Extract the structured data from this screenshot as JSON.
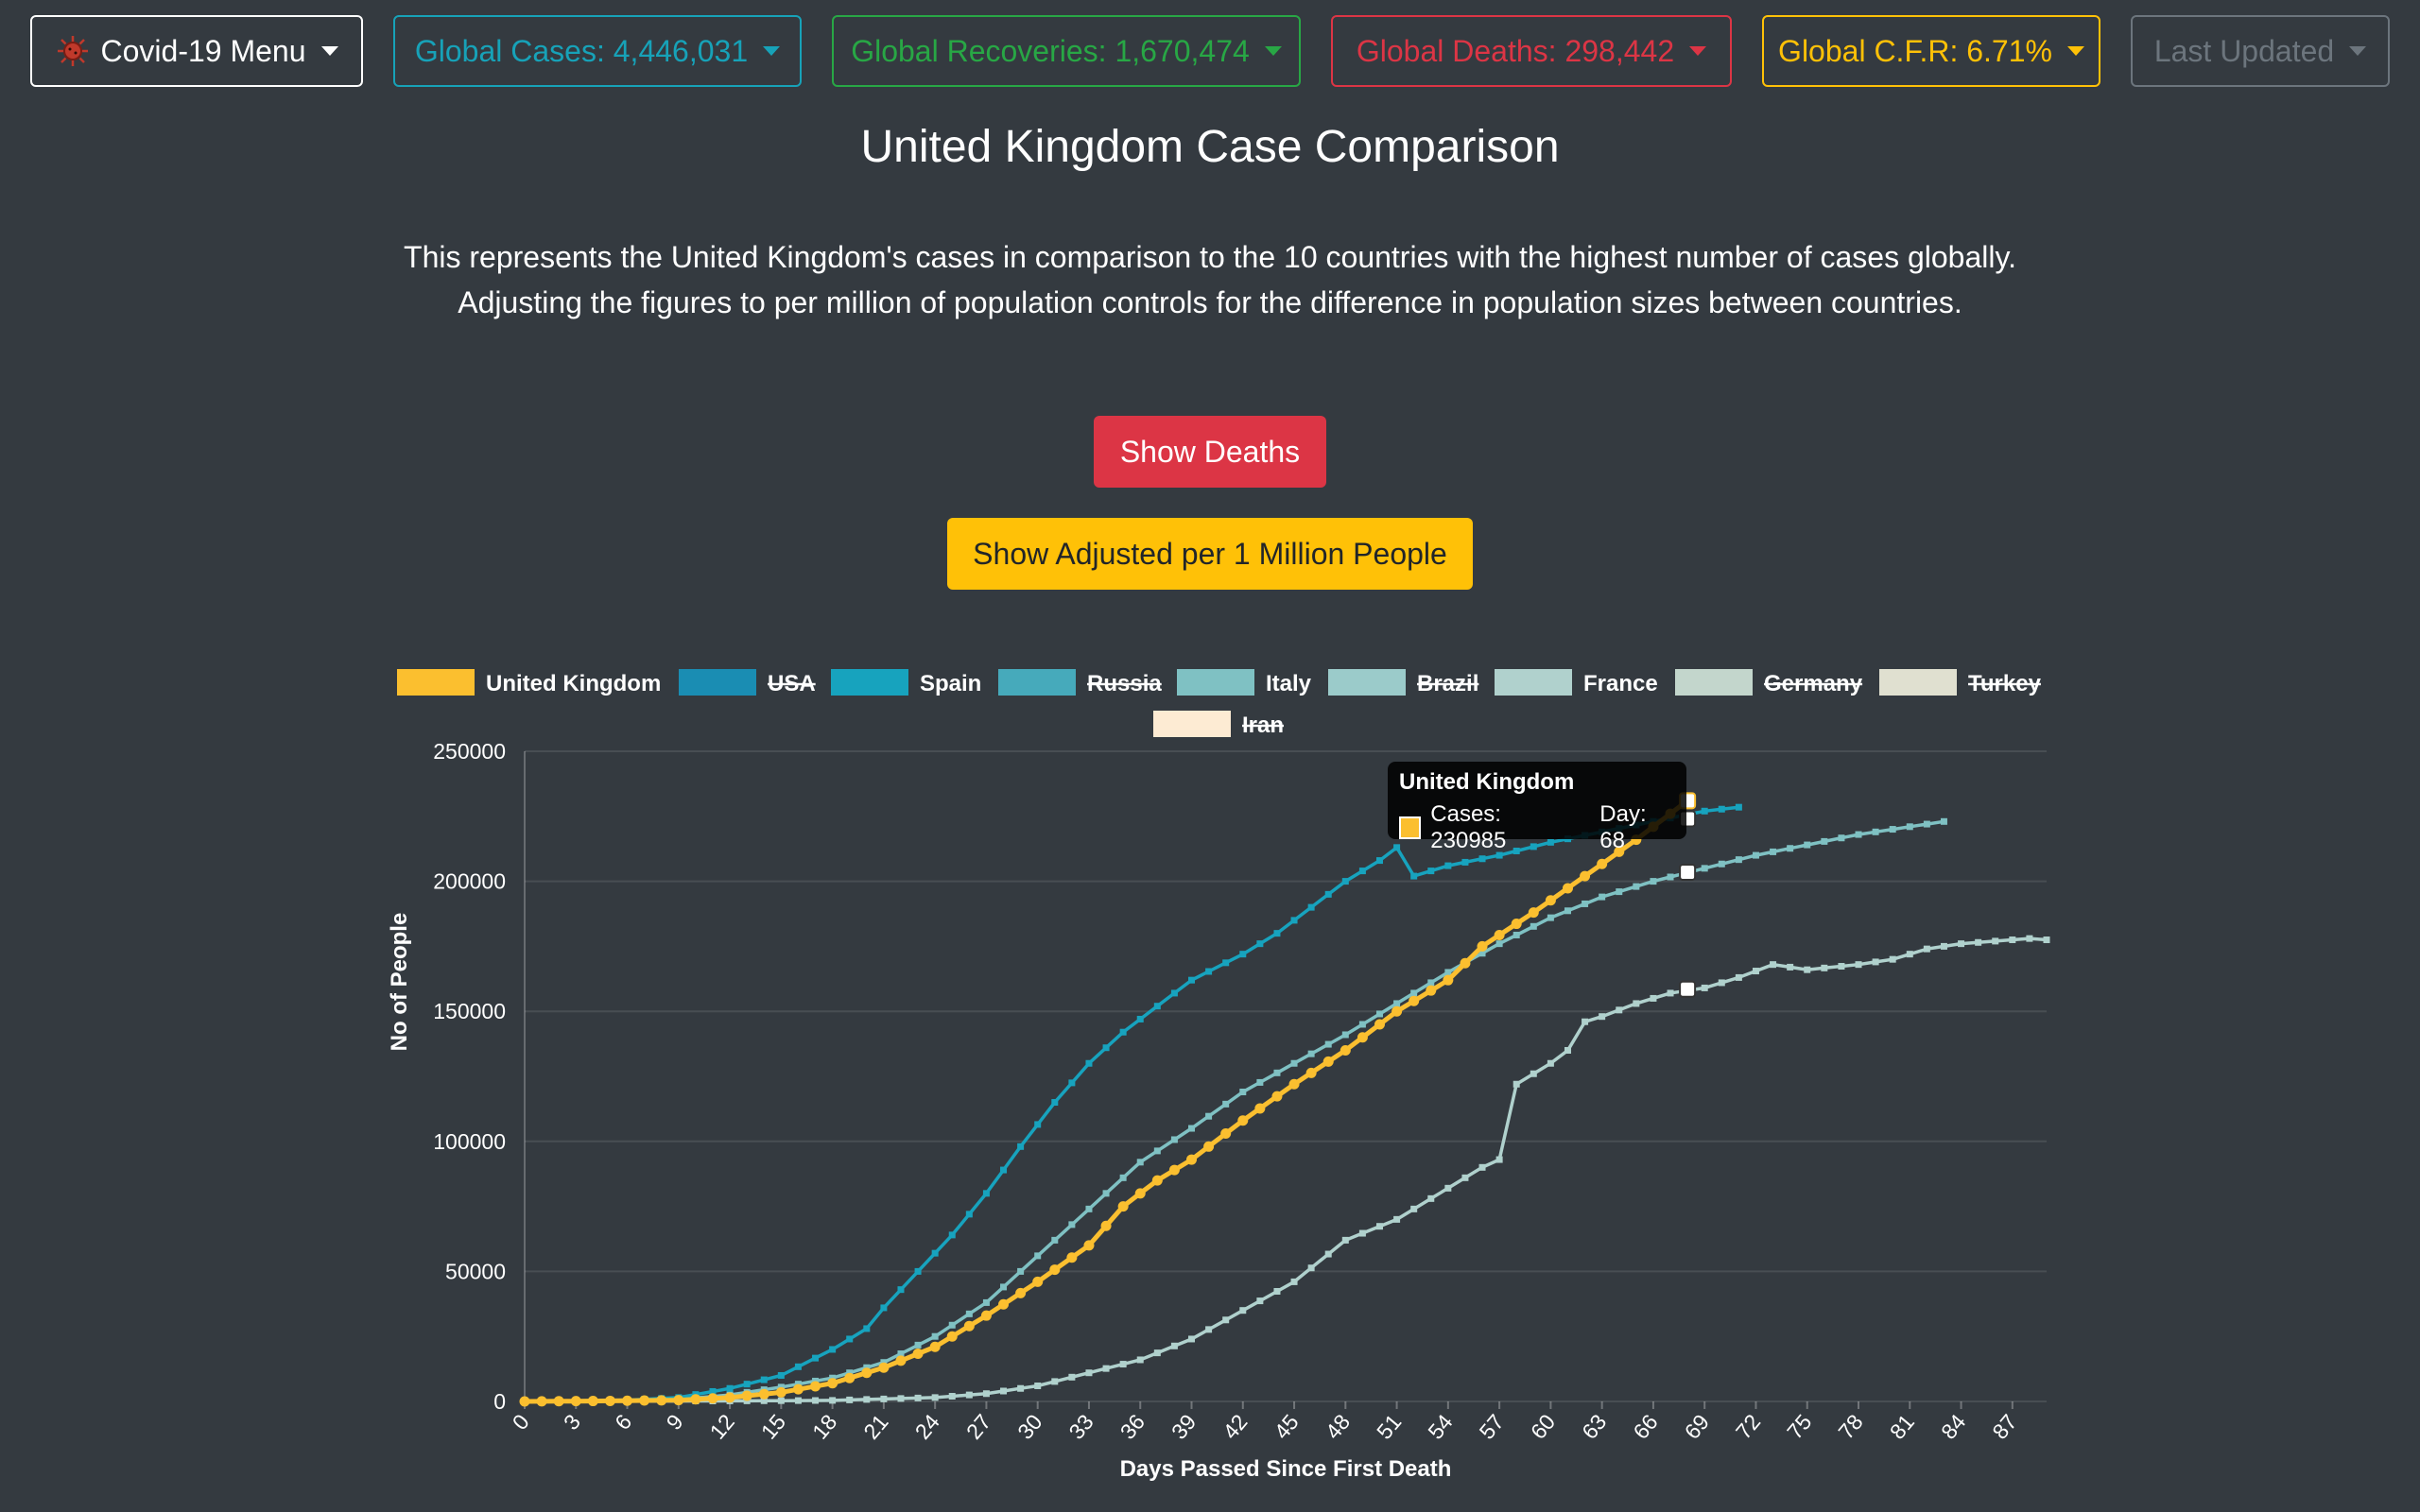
{
  "nav": {
    "menu_label": "Covid-19 Menu",
    "cases_label": "Global Cases: 4,446,031",
    "recoveries_label": "Global Recoveries: 1,670,474",
    "deaths_label": "Global Deaths: 298,442",
    "cfr_label": "Global C.F.R: 6.71%",
    "updated_label": "Last Updated"
  },
  "colors": {
    "background": "#343a40",
    "menu": "#ffffff",
    "cases": "#17a2b8",
    "recoveries": "#28a745",
    "deaths": "#dc3545",
    "cfr": "#ffc107",
    "updated": "#6c757d"
  },
  "icons": {
    "menu_icon": "virus-icon",
    "dropdown": "caret-down-icon"
  },
  "page": {
    "title": "United Kingdom Case Comparison",
    "description_line1": "This represents the United Kingdom's cases in comparison to the 10 countries with the highest number of cases globally.",
    "description_line2": "Adjusting the figures to per million of population controls for the difference in population sizes between countries."
  },
  "buttons": {
    "show_deaths": "Show Deaths",
    "show_adjusted": "Show Adjusted per 1 Million People"
  },
  "tooltip": {
    "title": "United Kingdom",
    "cases_label": "Cases: 230985",
    "day_label": "Day: 68"
  },
  "chart_data": {
    "type": "line",
    "xlabel": "Days Passed Since First Death",
    "ylabel": "No of People",
    "ylim": [
      0,
      250000
    ],
    "xlim": [
      0,
      89
    ],
    "yticks": [
      0,
      50000,
      100000,
      150000,
      200000,
      250000
    ],
    "xticks": [
      0,
      3,
      6,
      9,
      12,
      15,
      18,
      21,
      24,
      27,
      30,
      33,
      36,
      39,
      42,
      45,
      48,
      51,
      54,
      57,
      60,
      63,
      66,
      69,
      72,
      75,
      78,
      81,
      84,
      87
    ],
    "grid": true,
    "legend_position": "top",
    "legend": [
      {
        "name": "United Kingdom",
        "color": "#fbbf2f",
        "hidden": false
      },
      {
        "name": "USA",
        "color": "#1a8db3",
        "hidden": true
      },
      {
        "name": "Spain",
        "color": "#17a3be",
        "hidden": false
      },
      {
        "name": "Russia",
        "color": "#46aabb",
        "hidden": true
      },
      {
        "name": "Italy",
        "color": "#7fc1c3",
        "hidden": false
      },
      {
        "name": "Brazil",
        "color": "#9bcbca",
        "hidden": true
      },
      {
        "name": "France",
        "color": "#b0d1cd",
        "hidden": false
      },
      {
        "name": "Germany",
        "color": "#c3d6cc",
        "hidden": true
      },
      {
        "name": "Turkey",
        "color": "#e0e0d0",
        "hidden": true
      },
      {
        "name": "Iran",
        "color": "#fdebd3",
        "hidden": true
      }
    ],
    "series": [
      {
        "name": "United Kingdom",
        "color": "#fbbf2f",
        "points": [
          [
            0,
            0
          ],
          [
            5,
            200
          ],
          [
            9,
            500
          ],
          [
            12,
            1500
          ],
          [
            15,
            3500
          ],
          [
            18,
            7000
          ],
          [
            21,
            13000
          ],
          [
            24,
            21000
          ],
          [
            27,
            33000
          ],
          [
            30,
            46000
          ],
          [
            33,
            60000
          ],
          [
            35,
            75000
          ],
          [
            37,
            85000
          ],
          [
            39,
            93000
          ],
          [
            42,
            108000
          ],
          [
            45,
            122000
          ],
          [
            48,
            135000
          ],
          [
            51,
            150000
          ],
          [
            54,
            162000
          ],
          [
            56,
            175000
          ],
          [
            59,
            188000
          ],
          [
            62,
            202000
          ],
          [
            65,
            216000
          ],
          [
            68,
            230985
          ]
        ]
      },
      {
        "name": "Spain",
        "color": "#17a3be",
        "points": [
          [
            0,
            0
          ],
          [
            6,
            500
          ],
          [
            9,
            1500
          ],
          [
            12,
            5000
          ],
          [
            15,
            10000
          ],
          [
            18,
            20000
          ],
          [
            20,
            28000
          ],
          [
            21,
            36000
          ],
          [
            23,
            50000
          ],
          [
            25,
            64000
          ],
          [
            27,
            80000
          ],
          [
            29,
            98000
          ],
          [
            31,
            115000
          ],
          [
            33,
            130000
          ],
          [
            35,
            142000
          ],
          [
            37,
            152000
          ],
          [
            39,
            162000
          ],
          [
            42,
            172000
          ],
          [
            44,
            180000
          ],
          [
            46,
            190000
          ],
          [
            48,
            200000
          ],
          [
            50,
            208000
          ],
          [
            51,
            213000
          ],
          [
            52,
            202000
          ],
          [
            54,
            206000
          ],
          [
            57,
            210000
          ],
          [
            60,
            215000
          ],
          [
            63,
            219000
          ],
          [
            66,
            223000
          ],
          [
            69,
            227000
          ],
          [
            71,
            228500
          ]
        ]
      },
      {
        "name": "Italy",
        "color": "#7fc1c3",
        "points": [
          [
            0,
            0
          ],
          [
            9,
            800
          ],
          [
            12,
            2500
          ],
          [
            15,
            5500
          ],
          [
            18,
            9000
          ],
          [
            21,
            15000
          ],
          [
            24,
            25000
          ],
          [
            27,
            38000
          ],
          [
            30,
            56000
          ],
          [
            33,
            74000
          ],
          [
            36,
            92000
          ],
          [
            39,
            105000
          ],
          [
            42,
            119000
          ],
          [
            45,
            130000
          ],
          [
            48,
            141000
          ],
          [
            51,
            153000
          ],
          [
            54,
            165000
          ],
          [
            57,
            176000
          ],
          [
            60,
            186000
          ],
          [
            63,
            194000
          ],
          [
            66,
            200000
          ],
          [
            69,
            205000
          ],
          [
            72,
            210000
          ],
          [
            75,
            214000
          ],
          [
            78,
            218000
          ],
          [
            81,
            221000
          ],
          [
            83,
            223000
          ]
        ]
      },
      {
        "name": "France",
        "color": "#b0d1cd",
        "points": [
          [
            0,
            0
          ],
          [
            12,
            200
          ],
          [
            18,
            400
          ],
          [
            24,
            1500
          ],
          [
            27,
            3000
          ],
          [
            30,
            6000
          ],
          [
            33,
            11000
          ],
          [
            36,
            16000
          ],
          [
            39,
            24000
          ],
          [
            42,
            35000
          ],
          [
            45,
            46000
          ],
          [
            48,
            62000
          ],
          [
            51,
            70000
          ],
          [
            54,
            82000
          ],
          [
            56,
            90000
          ],
          [
            57,
            93000
          ],
          [
            58,
            122000
          ],
          [
            60,
            130000
          ],
          [
            61,
            135000
          ],
          [
            62,
            146000
          ],
          [
            63,
            148000
          ],
          [
            65,
            153000
          ],
          [
            67,
            157000
          ],
          [
            69,
            159000
          ],
          [
            71,
            163000
          ],
          [
            73,
            168000
          ],
          [
            75,
            166000
          ],
          [
            78,
            168000
          ],
          [
            80,
            170000
          ],
          [
            82,
            174000
          ],
          [
            84,
            176000
          ],
          [
            86,
            177000
          ],
          [
            88,
            178000
          ],
          [
            89,
            177500
          ]
        ]
      }
    ],
    "highlighted_points": [
      {
        "series": "United Kingdom",
        "x": 68,
        "y": 230985
      },
      {
        "series": "Spain",
        "x": 68,
        "y": 224000
      },
      {
        "series": "Italy",
        "x": 68,
        "y": 203500
      },
      {
        "series": "France",
        "x": 68,
        "y": 158500
      }
    ]
  }
}
